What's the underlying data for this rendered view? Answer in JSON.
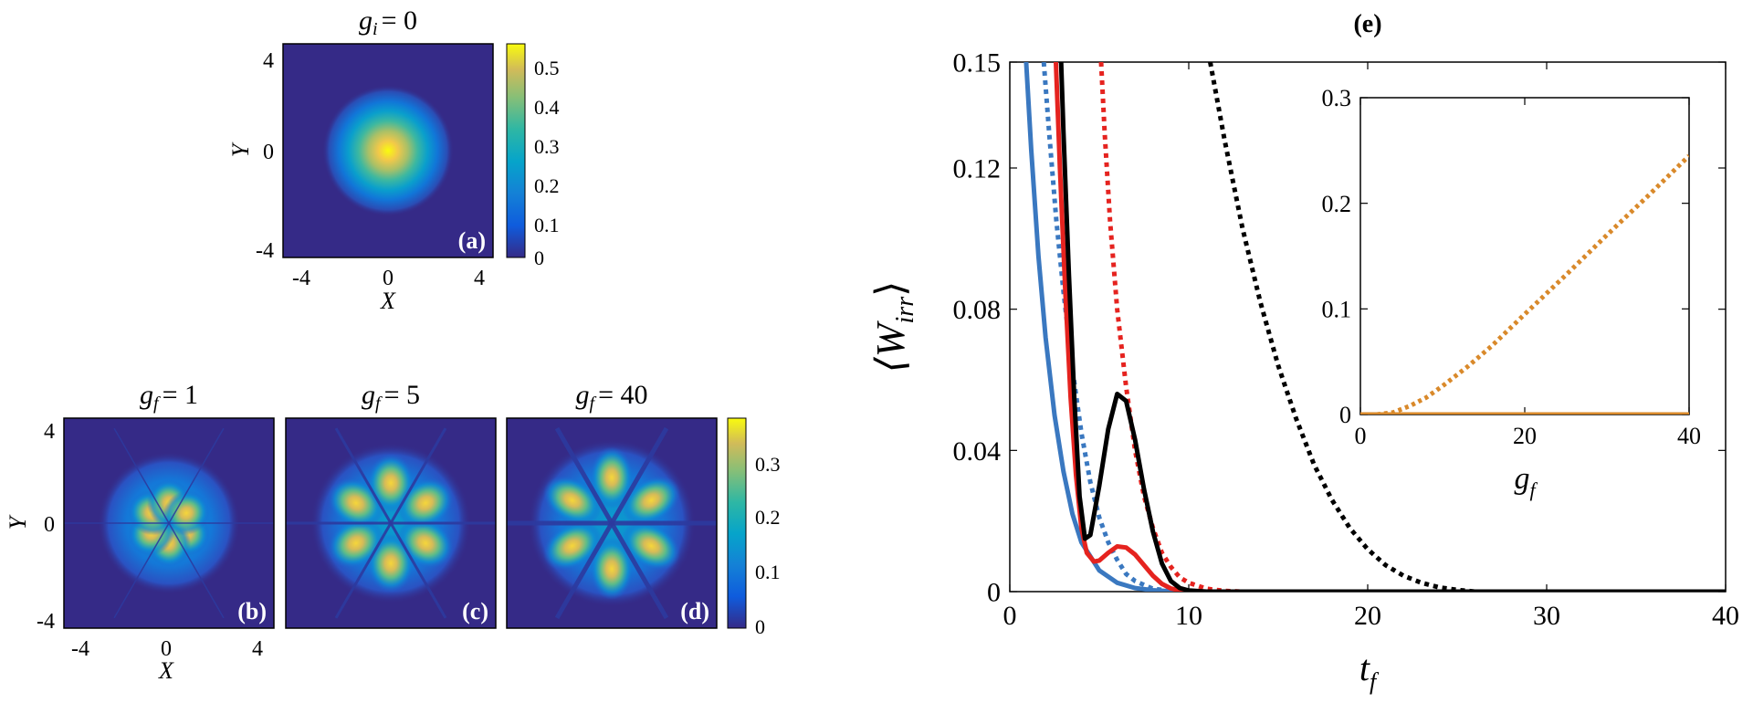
{
  "colors": {
    "blue": "#3a78c0",
    "red": "#e5231f",
    "black": "#000000",
    "orange": "#d9892a",
    "parula_low": "#352a87",
    "parula_high": "#f9fb0e"
  },
  "heatmaps": {
    "a": {
      "title_var": "g",
      "title_sub": "i",
      "title_val": "= 0",
      "label": "(a)"
    },
    "b": {
      "title_var": "g",
      "title_sub": "f",
      "title_val": "= 1",
      "label": "(b)"
    },
    "c": {
      "title_var": "g",
      "title_sub": "f",
      "title_val": "= 5",
      "label": "(c)"
    },
    "d": {
      "title_var": "g",
      "title_sub": "f",
      "title_val": "= 40",
      "label": "(d)"
    },
    "xlabel": "X",
    "ylabel": "Y",
    "ticks": [
      "-4",
      "0",
      "4"
    ],
    "cbar_top": [
      "0.5",
      "0.4",
      "0.3",
      "0.2",
      "0.1",
      "0"
    ],
    "cbar_bottom": [
      "0.3",
      "0.2",
      "0.1",
      "0"
    ]
  },
  "chart_data": [
    {
      "type": "heatmap",
      "title": "g_i = 0",
      "label": "(a)",
      "xlabel": "X",
      "ylabel": "Y",
      "xlim": [
        -5,
        5
      ],
      "ylim": [
        -5,
        5
      ],
      "colorbar": {
        "ticks": [
          0,
          0.1,
          0.2,
          0.3,
          0.4,
          0.5
        ],
        "max": 0.56
      },
      "pattern": "gaussian_peak",
      "peak": 0.56
    },
    {
      "type": "heatmap",
      "title": "g_f = 1",
      "label": "(b)",
      "xlabel": "X",
      "ylabel": "Y",
      "xlim": [
        -5,
        5
      ],
      "ylim": [
        -5,
        5
      ],
      "colorbar": {
        "ticks": [
          0,
          0.1,
          0.2,
          0.3
        ],
        "max": 0.38
      },
      "pattern": "six_lobes",
      "peak": 0.33
    },
    {
      "type": "heatmap",
      "title": "g_f = 5",
      "label": "(c)",
      "xlim": [
        -5,
        5
      ],
      "ylim": [
        -5,
        5
      ],
      "colorbar": {
        "ticks": [
          0,
          0.1,
          0.2,
          0.3
        ],
        "max": 0.38
      },
      "pattern": "six_lobes",
      "peak": 0.34
    },
    {
      "type": "heatmap",
      "title": "g_f = 40",
      "label": "(d)",
      "xlim": [
        -5,
        5
      ],
      "ylim": [
        -5,
        5
      ],
      "colorbar": {
        "ticks": [
          0,
          0.1,
          0.2,
          0.3
        ],
        "max": 0.38
      },
      "pattern": "six_lobes",
      "peak": 0.36
    },
    {
      "type": "line",
      "title": "(e)",
      "xlabel": "t_f",
      "ylabel": "⟨W_irr⟩",
      "xlim": [
        0,
        40
      ],
      "ylim": [
        0,
        0.15
      ],
      "xticks": [
        "0",
        "10",
        "20",
        "30",
        "40"
      ],
      "yticks": [
        "0",
        "0.04",
        "0.08",
        "0.12",
        "0.15"
      ],
      "series": [
        {
          "name": "blue solid",
          "color": "blue",
          "dash": false,
          "x": [
            0.8,
            1.2,
            1.6,
            2.0,
            2.5,
            3.0,
            3.5,
            4.0,
            5.0,
            6.0,
            7.0,
            8.0,
            9.0,
            10.0,
            12.0,
            20.0,
            40.0
          ],
          "y": [
            0.16,
            0.125,
            0.095,
            0.072,
            0.05,
            0.034,
            0.022,
            0.014,
            0.006,
            0.0025,
            0.001,
            0.0004,
            0.0001,
            0.0,
            0.0,
            0.0,
            0.0
          ]
        },
        {
          "name": "blue dotted",
          "color": "blue",
          "dash": true,
          "x": [
            1.9,
            2.2,
            2.6,
            3.0,
            3.5,
            4.0,
            4.5,
            5.0,
            5.5,
            6.0,
            6.5,
            7.0,
            8.0,
            9.0,
            10.0
          ],
          "y": [
            0.15,
            0.13,
            0.105,
            0.085,
            0.063,
            0.045,
            0.031,
            0.021,
            0.014,
            0.009,
            0.005,
            0.003,
            0.0008,
            0.0002,
            0.0
          ]
        },
        {
          "name": "red solid",
          "color": "red",
          "dash": false,
          "x": [
            2.5,
            2.8,
            3.1,
            3.4,
            3.7,
            4.0,
            4.3,
            4.7,
            5.0,
            5.5,
            6.0,
            6.5,
            7.0,
            7.5,
            8.0,
            8.5,
            9.0,
            9.5,
            10.0,
            11.0,
            40.0
          ],
          "y": [
            0.16,
            0.12,
            0.085,
            0.055,
            0.033,
            0.018,
            0.011,
            0.0085,
            0.0088,
            0.011,
            0.0128,
            0.0125,
            0.0105,
            0.0075,
            0.0045,
            0.0022,
            0.0009,
            0.0003,
            0.0001,
            0.0,
            0.0
          ]
        },
        {
          "name": "red dotted",
          "color": "red",
          "dash": true,
          "x": [
            5.1,
            5.3,
            5.6,
            6.0,
            6.5,
            7.0,
            7.5,
            8.0,
            8.5,
            9.0,
            9.5,
            10.0,
            11.0,
            12.0,
            13.0
          ],
          "y": [
            0.15,
            0.13,
            0.105,
            0.08,
            0.058,
            0.04,
            0.027,
            0.018,
            0.011,
            0.007,
            0.004,
            0.0025,
            0.0008,
            0.0002,
            0.0
          ]
        },
        {
          "name": "black solid",
          "color": "black",
          "dash": false,
          "x": [
            2.8,
            3.0,
            3.3,
            3.6,
            3.9,
            4.2,
            4.5,
            5.0,
            5.5,
            6.0,
            6.5,
            7.0,
            7.5,
            8.0,
            8.5,
            9.0,
            9.5,
            10.0,
            11.0,
            40.0
          ],
          "y": [
            0.16,
            0.13,
            0.09,
            0.055,
            0.027,
            0.015,
            0.016,
            0.03,
            0.046,
            0.056,
            0.054,
            0.043,
            0.029,
            0.017,
            0.008,
            0.003,
            0.001,
            0.0003,
            0.0,
            0.0
          ]
        },
        {
          "name": "black dotted",
          "color": "black",
          "dash": true,
          "x": [
            11.2,
            12.0,
            13.0,
            14.0,
            15.0,
            16.0,
            17.0,
            18.0,
            19.0,
            20.0,
            21.0,
            22.0,
            23.0,
            24.0,
            25.0,
            26.0
          ],
          "y": [
            0.15,
            0.128,
            0.103,
            0.082,
            0.064,
            0.049,
            0.036,
            0.026,
            0.018,
            0.012,
            0.0075,
            0.0045,
            0.0025,
            0.0012,
            0.0005,
            0.0
          ]
        }
      ]
    },
    {
      "type": "line",
      "title": "inset",
      "xlabel": "g_f",
      "ylabel": "",
      "xlim": [
        0,
        40
      ],
      "ylim": [
        0,
        0.3
      ],
      "xticks": [
        "0",
        "20",
        "40"
      ],
      "yticks": [
        "0",
        "0.1",
        "0.2",
        "0.3"
      ],
      "series": [
        {
          "name": "orange solid",
          "color": "orange",
          "dash": false,
          "x": [
            0,
            40
          ],
          "y": [
            0.0,
            0.0
          ]
        },
        {
          "name": "orange dotted",
          "color": "orange",
          "dash": true,
          "x": [
            2,
            4,
            6,
            8,
            10,
            13,
            16,
            20,
            25,
            30,
            35,
            40
          ],
          "y": [
            0.0,
            0.002,
            0.008,
            0.016,
            0.027,
            0.045,
            0.065,
            0.095,
            0.132,
            0.17,
            0.207,
            0.245
          ]
        }
      ]
    }
  ],
  "main_chart": {
    "title": "(e)",
    "ylabel_text": "⟨W",
    "ylabel_sub": "irr",
    "ylabel_close": "⟩",
    "xlabel_var": "t",
    "xlabel_sub": "f"
  },
  "inset_chart": {
    "xlabel_var": "g",
    "xlabel_sub": "f"
  }
}
